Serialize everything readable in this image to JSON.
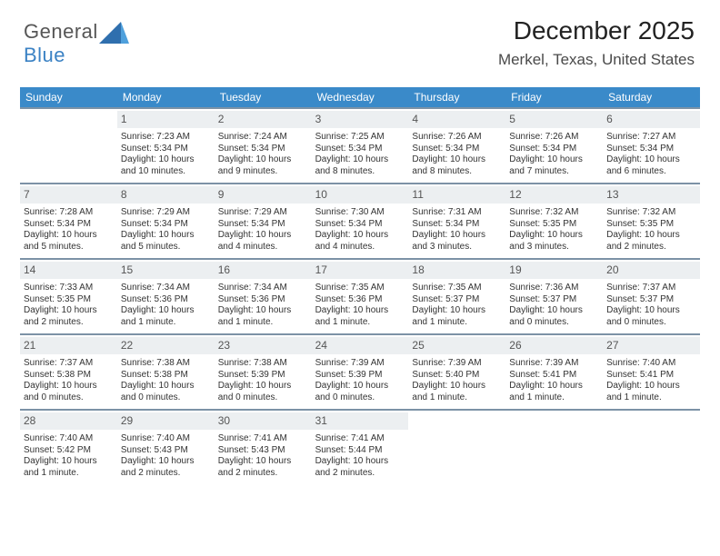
{
  "brand": {
    "part1": "General",
    "part2": "Blue"
  },
  "title": {
    "month": "December 2025",
    "location": "Merkel, Texas, United States"
  },
  "colors": {
    "header_bg": "#3a8ac9",
    "header_text": "#ffffff",
    "daynum_bg": "#eceff1",
    "row_separator": "#7c92a6",
    "brand_gray": "#565656",
    "brand_blue": "#3b82c4"
  },
  "dow": [
    "Sunday",
    "Monday",
    "Tuesday",
    "Wednesday",
    "Thursday",
    "Friday",
    "Saturday"
  ],
  "weeks": [
    [
      {
        "n": "",
        "sr": "",
        "ss": "",
        "dl": ""
      },
      {
        "n": "1",
        "sr": "Sunrise: 7:23 AM",
        "ss": "Sunset: 5:34 PM",
        "dl": "Daylight: 10 hours and 10 minutes."
      },
      {
        "n": "2",
        "sr": "Sunrise: 7:24 AM",
        "ss": "Sunset: 5:34 PM",
        "dl": "Daylight: 10 hours and 9 minutes."
      },
      {
        "n": "3",
        "sr": "Sunrise: 7:25 AM",
        "ss": "Sunset: 5:34 PM",
        "dl": "Daylight: 10 hours and 8 minutes."
      },
      {
        "n": "4",
        "sr": "Sunrise: 7:26 AM",
        "ss": "Sunset: 5:34 PM",
        "dl": "Daylight: 10 hours and 8 minutes."
      },
      {
        "n": "5",
        "sr": "Sunrise: 7:26 AM",
        "ss": "Sunset: 5:34 PM",
        "dl": "Daylight: 10 hours and 7 minutes."
      },
      {
        "n": "6",
        "sr": "Sunrise: 7:27 AM",
        "ss": "Sunset: 5:34 PM",
        "dl": "Daylight: 10 hours and 6 minutes."
      }
    ],
    [
      {
        "n": "7",
        "sr": "Sunrise: 7:28 AM",
        "ss": "Sunset: 5:34 PM",
        "dl": "Daylight: 10 hours and 5 minutes."
      },
      {
        "n": "8",
        "sr": "Sunrise: 7:29 AM",
        "ss": "Sunset: 5:34 PM",
        "dl": "Daylight: 10 hours and 5 minutes."
      },
      {
        "n": "9",
        "sr": "Sunrise: 7:29 AM",
        "ss": "Sunset: 5:34 PM",
        "dl": "Daylight: 10 hours and 4 minutes."
      },
      {
        "n": "10",
        "sr": "Sunrise: 7:30 AM",
        "ss": "Sunset: 5:34 PM",
        "dl": "Daylight: 10 hours and 4 minutes."
      },
      {
        "n": "11",
        "sr": "Sunrise: 7:31 AM",
        "ss": "Sunset: 5:34 PM",
        "dl": "Daylight: 10 hours and 3 minutes."
      },
      {
        "n": "12",
        "sr": "Sunrise: 7:32 AM",
        "ss": "Sunset: 5:35 PM",
        "dl": "Daylight: 10 hours and 3 minutes."
      },
      {
        "n": "13",
        "sr": "Sunrise: 7:32 AM",
        "ss": "Sunset: 5:35 PM",
        "dl": "Daylight: 10 hours and 2 minutes."
      }
    ],
    [
      {
        "n": "14",
        "sr": "Sunrise: 7:33 AM",
        "ss": "Sunset: 5:35 PM",
        "dl": "Daylight: 10 hours and 2 minutes."
      },
      {
        "n": "15",
        "sr": "Sunrise: 7:34 AM",
        "ss": "Sunset: 5:36 PM",
        "dl": "Daylight: 10 hours and 1 minute."
      },
      {
        "n": "16",
        "sr": "Sunrise: 7:34 AM",
        "ss": "Sunset: 5:36 PM",
        "dl": "Daylight: 10 hours and 1 minute."
      },
      {
        "n": "17",
        "sr": "Sunrise: 7:35 AM",
        "ss": "Sunset: 5:36 PM",
        "dl": "Daylight: 10 hours and 1 minute."
      },
      {
        "n": "18",
        "sr": "Sunrise: 7:35 AM",
        "ss": "Sunset: 5:37 PM",
        "dl": "Daylight: 10 hours and 1 minute."
      },
      {
        "n": "19",
        "sr": "Sunrise: 7:36 AM",
        "ss": "Sunset: 5:37 PM",
        "dl": "Daylight: 10 hours and 0 minutes."
      },
      {
        "n": "20",
        "sr": "Sunrise: 7:37 AM",
        "ss": "Sunset: 5:37 PM",
        "dl": "Daylight: 10 hours and 0 minutes."
      }
    ],
    [
      {
        "n": "21",
        "sr": "Sunrise: 7:37 AM",
        "ss": "Sunset: 5:38 PM",
        "dl": "Daylight: 10 hours and 0 minutes."
      },
      {
        "n": "22",
        "sr": "Sunrise: 7:38 AM",
        "ss": "Sunset: 5:38 PM",
        "dl": "Daylight: 10 hours and 0 minutes."
      },
      {
        "n": "23",
        "sr": "Sunrise: 7:38 AM",
        "ss": "Sunset: 5:39 PM",
        "dl": "Daylight: 10 hours and 0 minutes."
      },
      {
        "n": "24",
        "sr": "Sunrise: 7:39 AM",
        "ss": "Sunset: 5:39 PM",
        "dl": "Daylight: 10 hours and 0 minutes."
      },
      {
        "n": "25",
        "sr": "Sunrise: 7:39 AM",
        "ss": "Sunset: 5:40 PM",
        "dl": "Daylight: 10 hours and 1 minute."
      },
      {
        "n": "26",
        "sr": "Sunrise: 7:39 AM",
        "ss": "Sunset: 5:41 PM",
        "dl": "Daylight: 10 hours and 1 minute."
      },
      {
        "n": "27",
        "sr": "Sunrise: 7:40 AM",
        "ss": "Sunset: 5:41 PM",
        "dl": "Daylight: 10 hours and 1 minute."
      }
    ],
    [
      {
        "n": "28",
        "sr": "Sunrise: 7:40 AM",
        "ss": "Sunset: 5:42 PM",
        "dl": "Daylight: 10 hours and 1 minute."
      },
      {
        "n": "29",
        "sr": "Sunrise: 7:40 AM",
        "ss": "Sunset: 5:43 PM",
        "dl": "Daylight: 10 hours and 2 minutes."
      },
      {
        "n": "30",
        "sr": "Sunrise: 7:41 AM",
        "ss": "Sunset: 5:43 PM",
        "dl": "Daylight: 10 hours and 2 minutes."
      },
      {
        "n": "31",
        "sr": "Sunrise: 7:41 AM",
        "ss": "Sunset: 5:44 PM",
        "dl": "Daylight: 10 hours and 2 minutes."
      },
      {
        "n": "",
        "sr": "",
        "ss": "",
        "dl": ""
      },
      {
        "n": "",
        "sr": "",
        "ss": "",
        "dl": ""
      },
      {
        "n": "",
        "sr": "",
        "ss": "",
        "dl": ""
      }
    ]
  ]
}
